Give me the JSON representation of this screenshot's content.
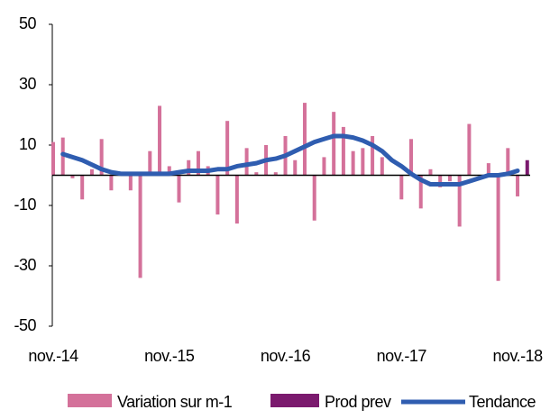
{
  "chart_data": {
    "type": "bar",
    "categories": [
      "nov.-14",
      null,
      null,
      null,
      null,
      null,
      null,
      null,
      null,
      null,
      null,
      null,
      "nov.-15",
      null,
      null,
      null,
      null,
      null,
      null,
      null,
      null,
      null,
      null,
      null,
      "nov.-16",
      null,
      null,
      null,
      null,
      null,
      null,
      null,
      null,
      null,
      null,
      null,
      "nov.-17",
      null,
      null,
      null,
      null,
      null,
      null,
      null,
      null,
      null,
      null,
      null,
      "nov.-18",
      null
    ],
    "series": [
      {
        "name": "Variation sur m-1",
        "color": "#d4719a",
        "kind": "bar",
        "values": [
          11,
          12.5,
          -1,
          -8,
          2,
          12,
          -5,
          1,
          -5,
          -34,
          8,
          23,
          3,
          -9,
          5,
          8,
          3,
          -13,
          18,
          -16,
          9,
          1,
          10,
          1,
          13,
          5,
          24,
          -15,
          6,
          21,
          16,
          8,
          9,
          13,
          6,
          0,
          -8,
          12,
          -11,
          2,
          -4,
          -2,
          -17,
          17,
          0,
          4,
          -35,
          9,
          -7,
          null
        ]
      },
      {
        "name": "Prod prev",
        "color": "#7b1a6e",
        "kind": "bar",
        "values": [
          null,
          null,
          null,
          null,
          null,
          null,
          null,
          null,
          null,
          null,
          null,
          null,
          null,
          null,
          null,
          null,
          null,
          null,
          null,
          null,
          null,
          null,
          null,
          null,
          null,
          null,
          null,
          null,
          null,
          null,
          null,
          null,
          null,
          null,
          null,
          null,
          null,
          null,
          null,
          null,
          null,
          null,
          null,
          null,
          null,
          null,
          null,
          null,
          null,
          5
        ]
      },
      {
        "name": "Tendance",
        "color": "#2f5db0",
        "kind": "line",
        "values": [
          null,
          7,
          6,
          5,
          3.5,
          2,
          1,
          0.5,
          0.5,
          0.5,
          0.5,
          0.5,
          0.5,
          1,
          1.5,
          1.5,
          1.5,
          2,
          2,
          3,
          3.5,
          4,
          5,
          5.5,
          6.5,
          8,
          9.5,
          11,
          12,
          13,
          13,
          12.5,
          11.5,
          10,
          8,
          5,
          3,
          0.5,
          -1.5,
          -3,
          -3,
          -3,
          -3,
          -2,
          -1,
          0,
          0,
          0.5,
          1.5,
          null
        ]
      }
    ],
    "ylim": [
      -50,
      50
    ],
    "yticks": [
      50,
      30,
      10,
      -10,
      -30,
      -50
    ]
  }
}
